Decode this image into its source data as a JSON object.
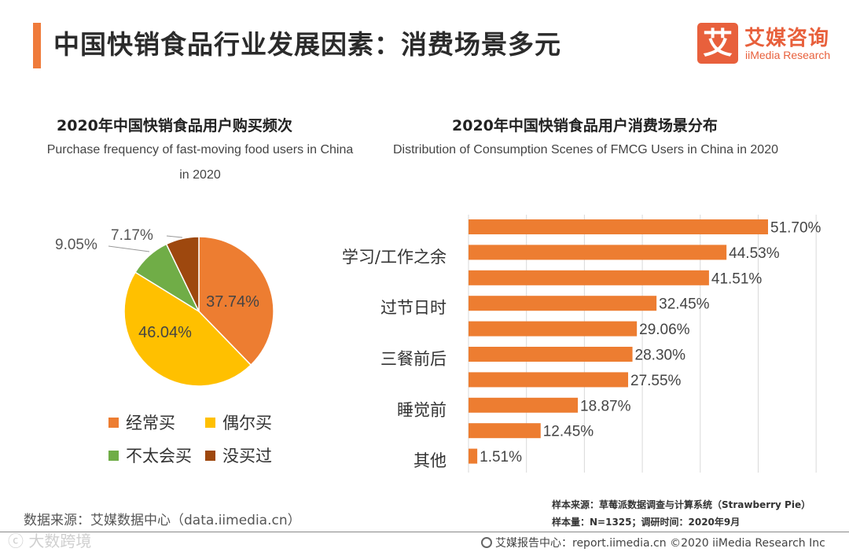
{
  "header": {
    "title": "中国快销食品行业发展因素：消费场景多元",
    "logo_mark": "艾",
    "logo_cn": "艾媒咨询",
    "logo_en": "iiMedia Research"
  },
  "colors": {
    "accent": "#ef7b3b",
    "orange": "#ed7d31",
    "yellow": "#ffc000",
    "green": "#70ad47",
    "brown": "#9e480e",
    "bar": "#ed7d31",
    "grid": "#d9d9d9"
  },
  "pie_chart": {
    "title_cn": "2020年中国快销食品用户购买频次",
    "title_en": "Purchase frequency of fast-moving food users in China in 2020"
  },
  "bar_chart": {
    "title_cn": "2020年中国快销食品用户消费场景分布",
    "title_en": "Distribution of Consumption Scenes of FMCG Users in China in 2020"
  },
  "chart_data": [
    {
      "type": "pie",
      "title": "2020年中国快销食品用户购买频次",
      "subtitle": "Purchase frequency of fast-moving food users in China in 2020",
      "slices": [
        {
          "label": "经常买",
          "value": 37.74,
          "display": "37.74%",
          "color": "#ed7d31"
        },
        {
          "label": "偶尔买",
          "value": 46.04,
          "display": "46.04%",
          "color": "#ffc000"
        },
        {
          "label": "不太会买",
          "value": 9.05,
          "display": "9.05%",
          "color": "#70ad47"
        },
        {
          "label": "没买过",
          "value": 7.17,
          "display": "7.17%",
          "color": "#9e480e"
        }
      ],
      "legend_position": "bottom"
    },
    {
      "type": "bar",
      "orientation": "horizontal",
      "title": "2020年中国快销食品用户消费场景分布",
      "subtitle": "Distribution of Consumption Scenes of FMCG Users in China in 2020",
      "categories": [
        "",
        "学习/工作之余",
        "",
        "过节日时",
        "",
        "三餐前后",
        "",
        "睡觉前",
        "",
        "其他"
      ],
      "values": [
        51.7,
        44.53,
        41.51,
        32.45,
        29.06,
        28.3,
        27.55,
        18.87,
        12.45,
        1.51
      ],
      "value_labels": [
        "51.70%",
        "44.53%",
        "41.51%",
        "32.45%",
        "29.06%",
        "28.30%",
        "27.55%",
        "18.87%",
        "12.45%",
        "1.51%"
      ],
      "xlim": [
        0,
        60
      ],
      "grid": true
    }
  ],
  "source": {
    "left": "数据来源：艾媒数据中心（data.iimedia.cn）",
    "sample_source": "样本来源：草莓派数据调查与计算系统（Strawberry Pie）",
    "sample_size": "样本量：N=1325；调研时间：2020年9月"
  },
  "footer": {
    "text": "艾媒报告中心：report.iimedia.cn  ©2020  iiMedia Research  Inc",
    "watermark": "ⓒ 大数跨境"
  }
}
